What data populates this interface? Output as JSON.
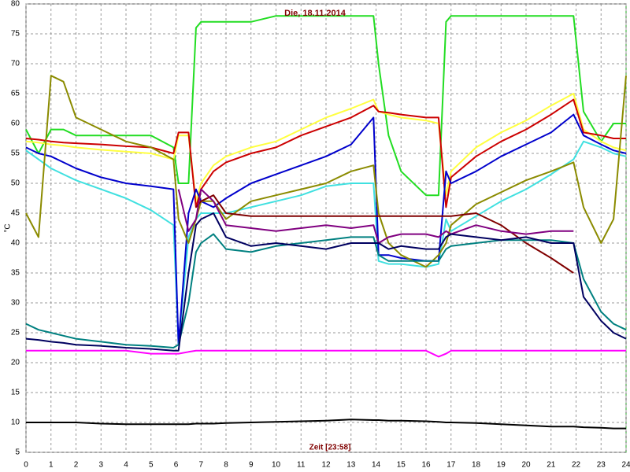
{
  "chart_data": {
    "type": "line",
    "title": "Die, 18.11.2014",
    "x_label": "Zeit [23:58]",
    "y_label": "°C",
    "xlim": [
      0,
      24
    ],
    "xticks": [
      0,
      1,
      2,
      3,
      4,
      5,
      6,
      7,
      8,
      9,
      10,
      11,
      12,
      13,
      14,
      15,
      16,
      17,
      18,
      19,
      20,
      21,
      22,
      23,
      24
    ],
    "ylim": [
      5,
      80
    ],
    "yticks": [
      5,
      10,
      15,
      20,
      25,
      30,
      35,
      40,
      45,
      50,
      55,
      60,
      65,
      70,
      75,
      80
    ],
    "grid": true,
    "x": [
      0,
      0.5,
      1,
      1.5,
      2,
      3,
      4,
      5,
      5.9,
      6.1,
      6.5,
      6.8,
      7,
      7.5,
      8,
      9,
      10,
      11,
      12,
      13,
      13.9,
      14.1,
      14.5,
      15,
      16,
      16.5,
      16.8,
      17,
      18,
      19,
      20,
      21,
      21.9,
      22.3,
      23,
      23.5,
      24
    ],
    "series": [
      {
        "color": "#22dd22",
        "values": [
          59,
          55,
          59,
          59,
          58,
          58,
          58,
          58,
          56,
          50,
          50,
          76,
          77,
          77,
          77,
          77,
          78,
          78,
          78,
          78,
          78,
          70,
          58,
          52,
          48,
          48,
          77,
          78,
          78,
          78,
          78,
          78,
          78,
          62,
          57,
          60,
          60
        ]
      },
      {
        "color": "#ffff40",
        "values": [
          57,
          56.8,
          56.5,
          56.3,
          56,
          55.6,
          55.3,
          55,
          54,
          58,
          58,
          47,
          50,
          53,
          54.5,
          56,
          57,
          59,
          61,
          62.5,
          64,
          62,
          61.5,
          61,
          60.5,
          60,
          48,
          52,
          56,
          58.5,
          60.5,
          63,
          65,
          59,
          57,
          56,
          55.5
        ]
      },
      {
        "color": "#cc0000",
        "values": [
          57.5,
          57.3,
          57,
          56.8,
          56.7,
          56.5,
          56.2,
          56,
          55,
          58.5,
          58.5,
          46,
          49,
          52,
          53.5,
          55,
          56,
          58,
          59.5,
          61,
          63,
          62,
          61.8,
          61.5,
          61,
          61,
          46,
          51,
          54.5,
          57,
          59,
          61.5,
          64,
          58.5,
          58,
          57.5,
          57.5
        ]
      },
      {
        "color": "#40e0e0",
        "values": [
          55.5,
          54,
          52.5,
          51.5,
          50.5,
          49,
          47.5,
          45.5,
          43,
          23,
          41,
          44,
          45,
          45,
          45,
          46,
          47,
          48,
          49.5,
          50,
          50,
          37,
          36.5,
          36.5,
          36,
          36.5,
          44,
          42,
          44.5,
          47,
          49,
          51.5,
          54,
          57,
          56,
          55,
          54.5
        ]
      },
      {
        "color": "#0000cc",
        "values": [
          56,
          55,
          54.5,
          53.5,
          52.5,
          51,
          50,
          49.5,
          49,
          23,
          45,
          49,
          47,
          46,
          47.5,
          50,
          51.5,
          53,
          54.5,
          56.5,
          61,
          38,
          38,
          37.5,
          37,
          37,
          52,
          50,
          52,
          54.5,
          56.5,
          58.5,
          61.5,
          58,
          56.5,
          55.5,
          55
        ]
      },
      {
        "color": "#8b8b00",
        "values": [
          45,
          41,
          68,
          67,
          61,
          59,
          57,
          56,
          54,
          44,
          40,
          44,
          47,
          47,
          44,
          47,
          48,
          49,
          50,
          52,
          53,
          45,
          40,
          38,
          36,
          38,
          40,
          43,
          46.5,
          48.5,
          50.5,
          52,
          53.5,
          46,
          40,
          44,
          68
        ]
      },
      {
        "color": "#800000",
        "values": [
          null,
          null,
          null,
          null,
          null,
          null,
          null,
          null,
          null,
          null,
          null,
          46,
          47,
          48,
          45,
          44.5,
          44.5,
          44.5,
          44.5,
          44.5,
          44.5,
          44.5,
          44.5,
          44.5,
          44.5,
          44.5,
          44.5,
          44.5,
          45,
          43,
          40,
          37.5,
          35,
          null,
          null,
          null,
          null
        ]
      },
      {
        "color": "#800080",
        "values": [
          null,
          null,
          null,
          null,
          null,
          null,
          null,
          null,
          null,
          49,
          42,
          44,
          49,
          47,
          43,
          42.5,
          42,
          42.5,
          43,
          42.5,
          43,
          40,
          41,
          41.5,
          41.5,
          41,
          42,
          41.5,
          43,
          42,
          41.5,
          42,
          42,
          null,
          null,
          null,
          null
        ]
      },
      {
        "color": "#008080",
        "values": [
          26.5,
          25.5,
          25,
          24.5,
          24,
          23.5,
          23,
          22.8,
          22.5,
          23,
          30,
          38.5,
          40,
          41.5,
          39,
          38.5,
          39.5,
          40,
          40.5,
          41,
          41,
          38,
          37,
          37,
          37,
          37,
          39,
          39.5,
          40,
          40.5,
          40.5,
          40.5,
          40,
          34,
          28.5,
          26.5,
          25.5
        ]
      },
      {
        "color": "#000060",
        "values": [
          24,
          23.8,
          23.5,
          23.3,
          23,
          22.8,
          22.5,
          22.3,
          22,
          22,
          35,
          43,
          44,
          45,
          41,
          39.5,
          40,
          39.5,
          39,
          40,
          40,
          40,
          39,
          39.5,
          39,
          39,
          41,
          41.5,
          41,
          40.5,
          41,
          40,
          40,
          31,
          27,
          25,
          24
        ]
      },
      {
        "color": "#ff00ff",
        "values": [
          22,
          22,
          22,
          22,
          22,
          22,
          22,
          21.5,
          21.5,
          21.5,
          21.8,
          22,
          22,
          22,
          22,
          22,
          22,
          22,
          22,
          22,
          22,
          22,
          22,
          22,
          22,
          21,
          21.5,
          22,
          22,
          22,
          22,
          22,
          22,
          22,
          22,
          22,
          22
        ]
      },
      {
        "color": "#000000",
        "values": [
          10,
          10,
          10,
          10,
          10,
          9.8,
          9.7,
          9.7,
          9.7,
          9.7,
          9.7,
          9.8,
          9.8,
          9.8,
          9.9,
          10,
          10.1,
          10.2,
          10.3,
          10.5,
          10.4,
          10.4,
          10.3,
          10.3,
          10.2,
          10.1,
          10,
          10,
          9.9,
          9.7,
          9.5,
          9.3,
          9.3,
          9.2,
          9.1,
          9,
          9
        ]
      }
    ]
  }
}
